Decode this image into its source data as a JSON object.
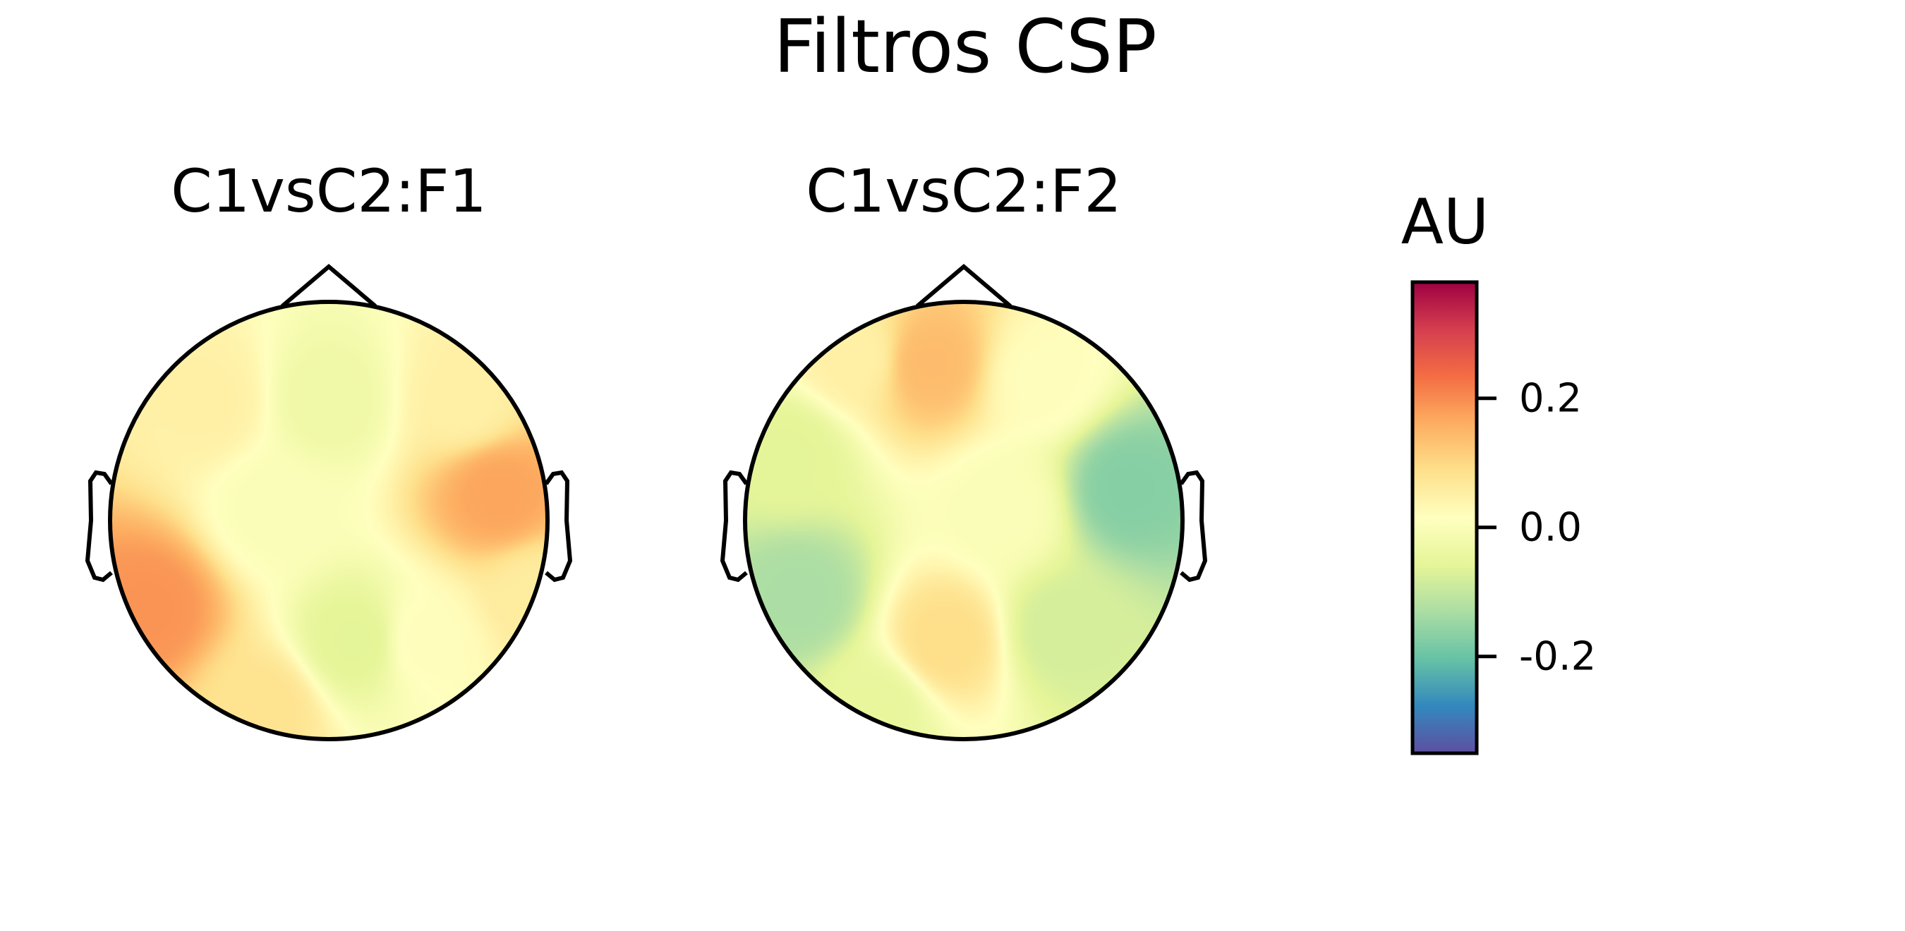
{
  "chart_data": [
    {
      "type": "heatmap",
      "title": "C1vsC2:F1",
      "subtype": "topographic-head-map",
      "colormap": "Spectral_r",
      "sources": [
        {
          "pos": [
            0.78,
            0.12
          ],
          "value": 0.17
        },
        {
          "pos": [
            0.62,
            0.55
          ],
          "value": 0.05
        },
        {
          "pos": [
            -0.82,
            -0.4
          ],
          "value": 0.19
        },
        {
          "pos": [
            -0.55,
            0.55
          ],
          "value": 0.05
        },
        {
          "pos": [
            0.0,
            0.55
          ],
          "value": -0.03
        },
        {
          "pos": [
            0.12,
            -0.55
          ],
          "value": -0.06
        },
        {
          "pos": [
            -0.25,
            0.05
          ],
          "value": 0.0
        },
        {
          "pos": [
            0.45,
            -0.55
          ],
          "value": 0.02
        },
        {
          "pos": [
            -0.3,
            -0.85
          ],
          "value": 0.08
        },
        {
          "pos": [
            0.95,
            -0.35
          ],
          "value": 0.06
        }
      ]
    },
    {
      "type": "heatmap",
      "title": "C1vsC2:F2",
      "subtype": "topographic-head-map",
      "colormap": "Spectral_r",
      "sources": [
        {
          "pos": [
            0.75,
            0.15
          ],
          "value": -0.17
        },
        {
          "pos": [
            0.45,
            -0.5
          ],
          "value": -0.08
        },
        {
          "pos": [
            -0.75,
            -0.35
          ],
          "value": -0.13
        },
        {
          "pos": [
            -0.8,
            0.3
          ],
          "value": -0.06
        },
        {
          "pos": [
            -0.15,
            0.72
          ],
          "value": 0.14
        },
        {
          "pos": [
            -0.08,
            -0.55
          ],
          "value": 0.09
        },
        {
          "pos": [
            0.35,
            0.65
          ],
          "value": 0.02
        },
        {
          "pos": [
            -0.5,
            0.75
          ],
          "value": 0.05
        },
        {
          "pos": [
            -0.4,
            -0.85
          ],
          "value": -0.05
        },
        {
          "pos": [
            0.2,
            0.05
          ],
          "value": 0.0
        }
      ]
    }
  ],
  "figure_title": "Filtros CSP",
  "colorbar": {
    "label": "AU",
    "range": [
      -0.35,
      0.38
    ],
    "ticks": [
      0.2,
      0.0,
      -0.2
    ],
    "tick_labels": [
      "0.2",
      "0.0",
      "-0.2"
    ]
  }
}
